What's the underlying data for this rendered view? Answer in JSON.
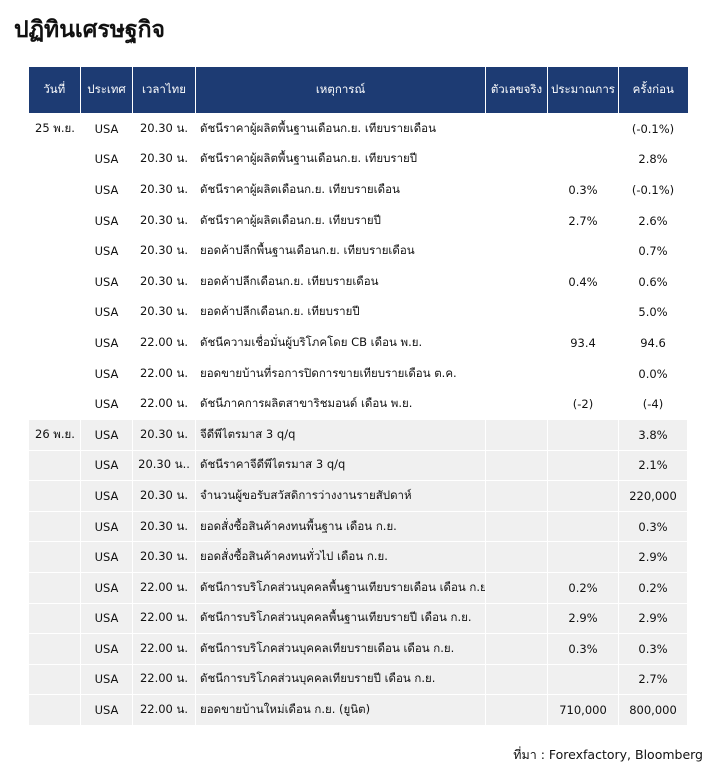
{
  "title": "ปฏิทินเศรษฐกิจ",
  "header": {
    "date": "วันที่",
    "country": "ประเทศ",
    "time": "เวลาไทย",
    "event": "เหตุการณ์",
    "actual": "ตัวเลขจริง",
    "forecast": "ประมาณการ",
    "previous": "ครั้งก่อน"
  },
  "groups": [
    {
      "date": "25 พ.ย.",
      "rows": [
        {
          "country": "USA",
          "time": "20.30 น.",
          "event": "ดัชนีราคาผู้ผลิตพื้นฐานเดือนก.ย. เทียบรายเดือน",
          "previous": "(-0.1%)"
        },
        {
          "country": "USA",
          "time": "20.30 น.",
          "event": "ดัชนีราคาผู้ผลิตพื้นฐานเดือนก.ย. เทียบรายปี",
          "previous": "2.8%"
        },
        {
          "country": "USA",
          "time": "20.30 น.",
          "event": "ดัชนีราคาผู้ผลิตเดือนก.ย. เทียบรายเดือน",
          "forecast": "0.3%",
          "previous": "(-0.1%)"
        },
        {
          "country": "USA",
          "time": "20.30 น.",
          "event": "ดัชนีราคาผู้ผลิตเดือนก.ย. เทียบรายปี",
          "forecast": "2.7%",
          "previous": "2.6%"
        },
        {
          "country": "USA",
          "time": "20.30 น.",
          "event": "ยอดค้าปลีกพื้นฐานเดือนก.ย. เทียบรายเดือน",
          "previous": "0.7%"
        },
        {
          "country": "USA",
          "time": "20.30 น.",
          "event": "ยอดค้าปลีกเดือนก.ย. เทียบรายเดือน",
          "forecast": "0.4%",
          "previous": "0.6%"
        },
        {
          "country": "USA",
          "time": "20.30 น.",
          "event": "ยอดค้าปลีกเดือนก.ย. เทียบรายปี",
          "previous": "5.0%"
        },
        {
          "country": "USA",
          "time": "22.00 น.",
          "event": "ดัชนีความเชื่อมั่นผู้บริโภคโดย CB เดือน พ.ย.",
          "forecast": "93.4",
          "previous": "94.6"
        },
        {
          "country": "USA",
          "time": "22.00 น.",
          "event": "ยอดขายบ้านที่รอการปิดการขายเทียบรายเดือน ต.ค.",
          "previous": "0.0%"
        },
        {
          "country": "USA",
          "time": "22.00 น.",
          "event": "ดัชนีภาคการผลิตสาขาริชมอนด์ เดือน พ.ย.",
          "forecast": "(-2)",
          "previous": "(-4)"
        }
      ]
    },
    {
      "date": "26 พ.ย.",
      "rows": [
        {
          "country": "USA",
          "time": "20.30 น.",
          "event": "จีดีพีไตรมาส 3  q/q",
          "previous": "3.8%"
        },
        {
          "country": "USA",
          "time": "20.30 น..",
          "event": "ดัชนีราคาจีดีพีไตรมาส 3 q/q",
          "previous": "2.1%"
        },
        {
          "country": "USA",
          "time": "20.30 น.",
          "event": "จำนวนผู้ขอรับสวัสดิการว่างงานรายสัปดาห์",
          "previous": "220,000"
        },
        {
          "country": "USA",
          "time": "20.30 น.",
          "event": "ยอดสั่งซื้อสินค้าคงทนพื้นฐาน เดือน ก.ย.",
          "previous": "0.3%"
        },
        {
          "country": "USA",
          "time": "20.30 น.",
          "event": "ยอดสั่งซื้อสินค้าคงทนทั่วไป เดือน ก.ย.",
          "previous": "2.9%"
        },
        {
          "country": "USA",
          "time": "22.00 น.",
          "event": "ดัชนีการบริโภคส่วนบุคคลพื้นฐานเทียบรายเดือน เดือน ก.ย.",
          "forecast": "0.2%",
          "previous": "0.2%"
        },
        {
          "country": "USA",
          "time": "22.00 น.",
          "event": "ดัชนีการบริโภคส่วนบุคคลพื้นฐานเทียบรายปี เดือน ก.ย.",
          "forecast": "2.9%",
          "previous": "2.9%"
        },
        {
          "country": "USA",
          "time": "22.00 น.",
          "event": "ดัชนีการบริโภคส่วนบุคคลเทียบรายเดือน เดือน ก.ย.",
          "forecast": "0.3%",
          "previous": "0.3%"
        },
        {
          "country": "USA",
          "time": "22.00 น.",
          "event": "ดัชนีการบริโภคส่วนบุคคลเทียบรายปี เดือน ก.ย.",
          "previous": "2.7%"
        },
        {
          "country": "USA",
          "time": "22.00 น.",
          "event": "ยอดขายบ้านใหม่เดือน ก.ย. (ยูนิต)",
          "forecast": "710,000",
          "previous": "800,000"
        }
      ]
    }
  ],
  "source": "ที่มา : Forexfactory, Bloomberg"
}
